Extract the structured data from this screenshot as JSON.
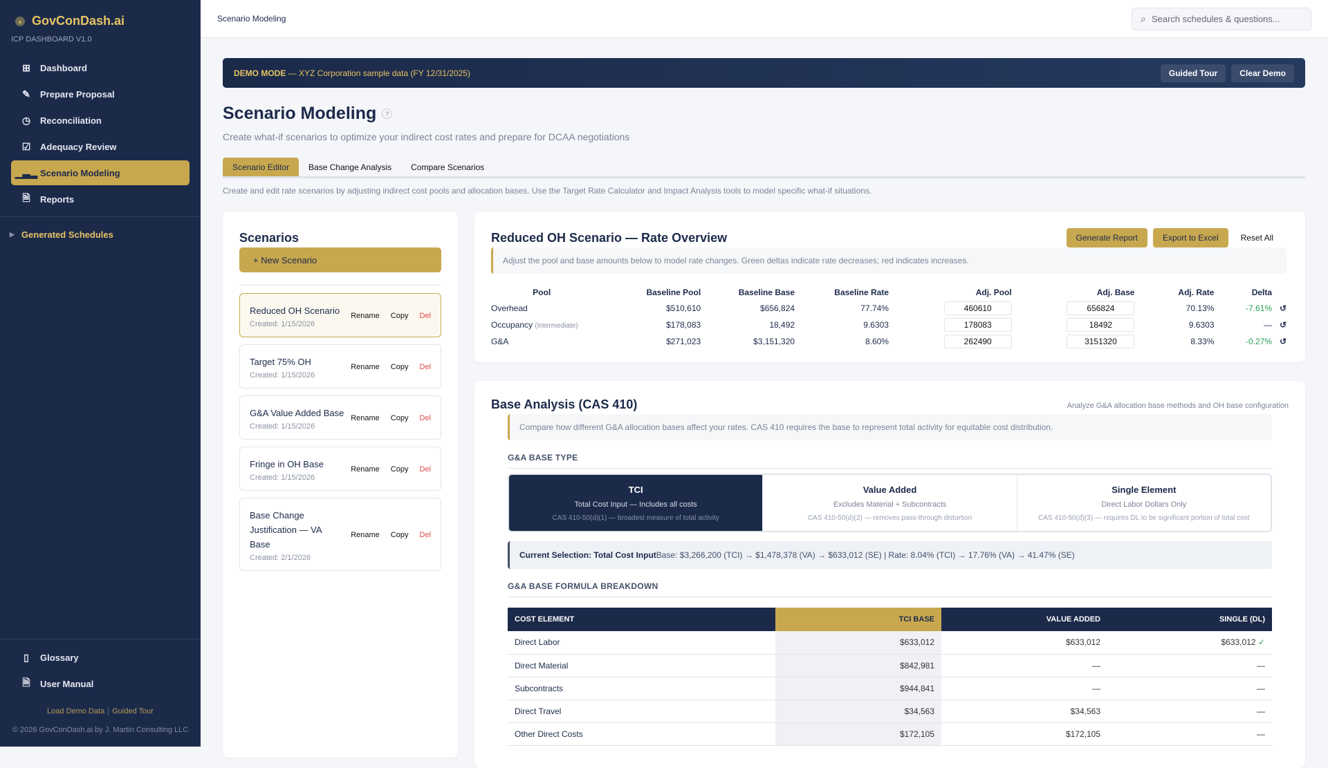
{
  "sidebar": {
    "brand": "GovConDash.ai",
    "subtitle": "ICP DASHBOARD V1.0",
    "items": [
      {
        "label": "Dashboard",
        "icon": "grid-icon"
      },
      {
        "label": "Prepare Proposal",
        "icon": "edit-icon"
      },
      {
        "label": "Reconciliation",
        "icon": "check-circle-icon"
      },
      {
        "label": "Adequacy Review",
        "icon": "check-square-icon"
      },
      {
        "label": "Scenario Modeling",
        "icon": "bar-chart-icon",
        "active": true
      },
      {
        "label": "Reports",
        "icon": "document-icon"
      }
    ],
    "generated": "Generated Schedules",
    "bottom": [
      {
        "label": "Glossary",
        "icon": "book-icon"
      },
      {
        "label": "User Manual",
        "icon": "document-icon"
      }
    ],
    "load_demo": "Load Demo Data",
    "guided_tour": "Guided Tour",
    "copyright": "© 2026 GovConDash.ai by J. Martin Consulting LLC"
  },
  "header": {
    "breadcrumb": "Scenario Modeling",
    "search_placeholder": "Search schedules & questions..."
  },
  "banner": {
    "mode": "DEMO MODE",
    "text": " — XYZ Corporation sample data (FY 12/31/2025)",
    "guided_tour": "Guided Tour",
    "clear_demo": "Clear Demo"
  },
  "page": {
    "title": "Scenario Modeling",
    "help": "?",
    "subtitle": "Create what-if scenarios to optimize your indirect cost rates and prepare for DCAA negotiations",
    "tabs": [
      "Scenario Editor",
      "Base Change Analysis",
      "Compare Scenarios"
    ],
    "tab_desc": "Create and edit rate scenarios by adjusting indirect cost pools and allocation bases. Use the Target Rate Calculator and Impact Analysis tools to model specific what-if situations."
  },
  "scenarios": {
    "title": "Scenarios",
    "new_label": "+ New Scenario",
    "rename": "Rename",
    "copy": "Copy",
    "del": "Del",
    "items": [
      {
        "name": "Reduced OH Scenario",
        "created": "Created: 1/15/2026"
      },
      {
        "name": "Target 75% OH",
        "created": "Created: 1/15/2026"
      },
      {
        "name": "G&A Value Added Base",
        "created": "Created: 1/15/2026"
      },
      {
        "name": "Fringe in OH Base",
        "created": "Created: 1/15/2026"
      },
      {
        "name": "Base Change Justification — VA Base",
        "created": "Created: 2/1/2026"
      }
    ]
  },
  "rate_overview": {
    "title": "Reduced OH Scenario — Rate Overview",
    "generate": "Generate Report",
    "export": "Export to Excel",
    "reset": "Reset All",
    "note": "Adjust the pool and base amounts below to model rate changes. Green deltas indicate rate decreases; red indicates increases.",
    "columns": [
      "Pool",
      "Baseline Pool",
      "Baseline Base",
      "Baseline Rate",
      "Adj. Pool",
      "Adj. Base",
      "Adj. Rate",
      "Delta"
    ],
    "rows": [
      {
        "pool": "Overhead",
        "sub": "",
        "bpool": "$510,610",
        "bbase": "$656,824",
        "brate": "77.74%",
        "apool": "460610",
        "abase": "656824",
        "arate": "70.13%",
        "delta": "-7.61%"
      },
      {
        "pool": "Occupancy",
        "sub": "(Intermediate)",
        "bpool": "$178,083",
        "bbase": "18,492",
        "brate": "9.6303",
        "apool": "178083",
        "abase": "18492",
        "arate": "9.6303",
        "delta": "—"
      },
      {
        "pool": "G&A",
        "sub": "",
        "bpool": "$271,023",
        "bbase": "$3,151,320",
        "brate": "8.60%",
        "apool": "262490",
        "abase": "3151320",
        "arate": "8.33%",
        "delta": "-0.27%"
      }
    ],
    "reset_icon": "↺"
  },
  "base_analysis": {
    "title": "Base Analysis (CAS 410)",
    "right": "Analyze G&A allocation base methods and OH base configuration",
    "note": "Compare how different G&A allocation bases affect your rates. CAS 410 requires the base to represent total activity for equitable cost distribution.",
    "type_head": "G&A BASE TYPE",
    "types": [
      {
        "t": "TCI",
        "d": "Total Cost Input — Includes all costs",
        "c": "CAS 410-50(d)(1) — broadest measure of total activity"
      },
      {
        "t": "Value Added",
        "d": "Excludes Material + Subcontracts",
        "c": "CAS 410-50(d)(2) — removes pass-through distortion"
      },
      {
        "t": "Single Element",
        "d": "Direct Labor Dollars Only",
        "c": "CAS 410-50(d)(3) — requires DL to be significant portion of total cost"
      }
    ],
    "current_label": "Current Selection: Total Cost Input",
    "current_text": "Base: $3,266,200 (TCI) → $1,478,378 (VA) → $633,012 (SE)  |  Rate: 8.04% (TCI) → 17.76% (VA) → 41.47% (SE)",
    "formula_head": "G&A BASE FORMULA BREAKDOWN",
    "columns": [
      "COST ELEMENT",
      "TCI BASE",
      "VALUE ADDED",
      "SINGLE (DL)"
    ],
    "rows": [
      [
        "Direct Labor",
        "$633,012",
        "$633,012",
        "$633,012"
      ],
      [
        "Direct Material",
        "$842,981",
        "—",
        "—"
      ],
      [
        "Subcontracts",
        "$944,841",
        "—",
        "—"
      ],
      [
        "Direct Travel",
        "$34,563",
        "$34,563",
        "—"
      ],
      [
        "Other Direct Costs",
        "$172,105",
        "$172,105",
        "—"
      ]
    ],
    "check": "✓"
  },
  "colors": {
    "navy": "#1c2a4a",
    "gold": "#c8a84f",
    "green": "#2ca05a",
    "red": "#e04848"
  }
}
